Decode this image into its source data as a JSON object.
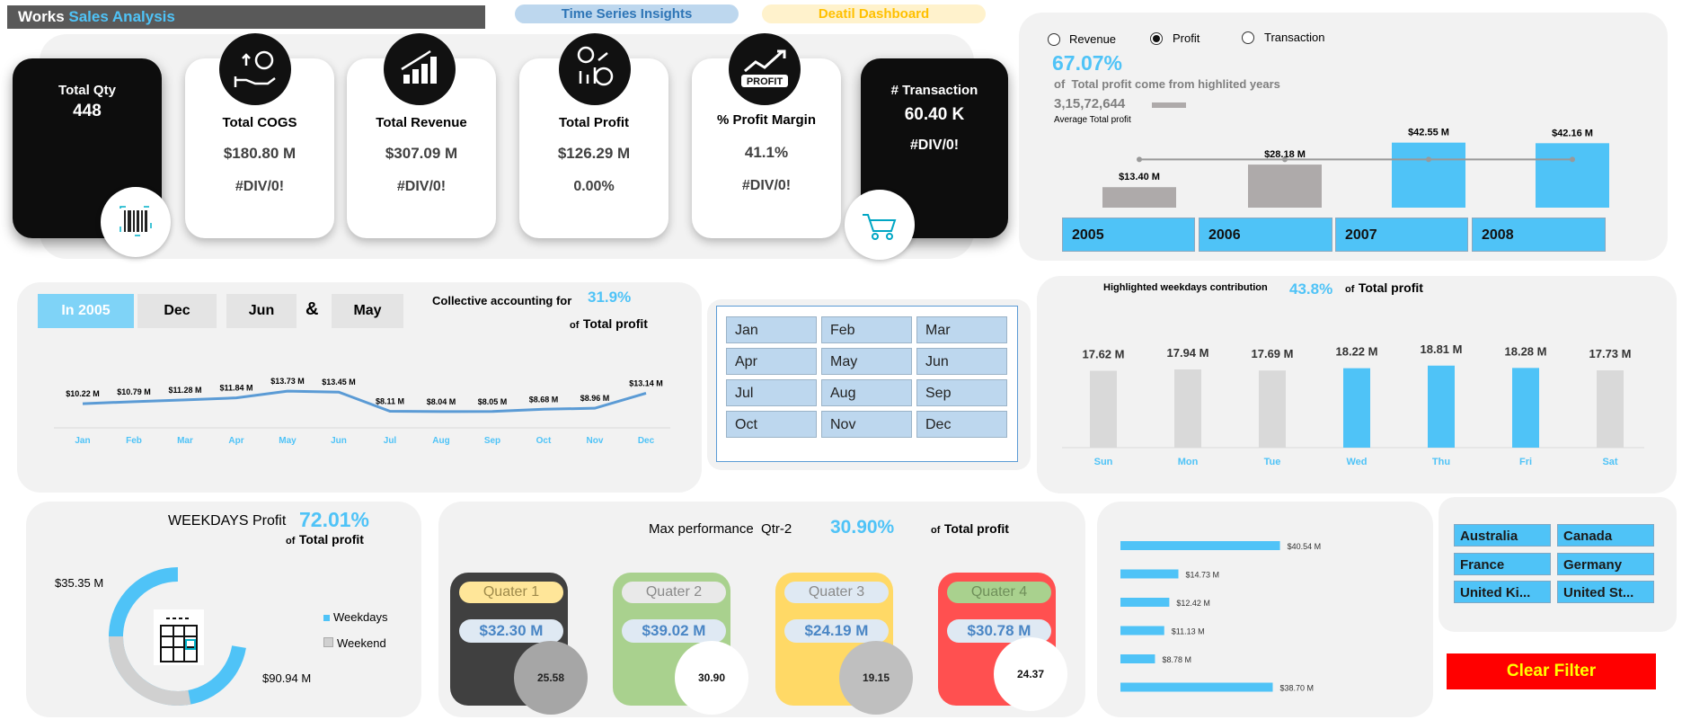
{
  "header": {
    "title_a": "Works",
    "title_b": "Sales Analysis",
    "nav_time_series": "Time Series Insights",
    "nav_detail": "Deatil Dashboard"
  },
  "kpis": {
    "qty": {
      "label": "Total Qty",
      "value": "448"
    },
    "cogs": {
      "label": "Total COGS",
      "value": "$180.80 M",
      "sub": "#DIV/0!"
    },
    "revenue": {
      "label": "Total Revenue",
      "value": "$307.09 M",
      "sub": "#DIV/0!"
    },
    "profit": {
      "label": "Total Profit",
      "value": "$126.29 M",
      "sub": "0.00%"
    },
    "margin": {
      "label": "% Profit Margin",
      "value": "41.1%",
      "sub": "#DIV/0!"
    },
    "transaction": {
      "label": "# Transaction",
      "value": "60.40 K",
      "sub": "#DIV/0!"
    },
    "profit_badge": "PROFIT"
  },
  "year_panel": {
    "radios": [
      "Revenue",
      "Profit",
      "Transaction"
    ],
    "selected_radio": "Profit",
    "pct": "67.07%",
    "pct_text_a": "of",
    "pct_text_b": "Total profit come from highlited years",
    "avg_value": "3,15,72,644",
    "avg_label": "Average Total profit",
    "years": [
      "2005",
      "2006",
      "2007",
      "2008"
    ],
    "values": [
      13.4,
      28.18,
      42.55,
      42.16
    ],
    "value_labels": [
      "$13.40 M",
      "$28.18 M",
      "$42.55 M",
      "$42.16 M"
    ],
    "highlighted": [
      false,
      false,
      true,
      true
    ]
  },
  "monthly_panel": {
    "tabs": [
      "In 2005",
      "Dec",
      "Jun",
      "&",
      "May"
    ],
    "accounting_text": "Collective accounting for",
    "pct": "31.9%",
    "of_text": "of",
    "total_text": "Total profit",
    "months": [
      "Jan",
      "Feb",
      "Mar",
      "Apr",
      "May",
      "Jun",
      "Jul",
      "Aug",
      "Sep",
      "Oct",
      "Nov",
      "Dec"
    ],
    "values": [
      10.22,
      10.79,
      11.28,
      11.84,
      13.73,
      13.45,
      8.11,
      8.04,
      8.05,
      8.68,
      8.96,
      13.14
    ],
    "value_labels": [
      "$10.22 M",
      "$10.79 M",
      "$11.28 M",
      "$11.84 M",
      "$13.73 M",
      "$13.45 M",
      "$8.11 M",
      "$8.04 M",
      "$8.05 M",
      "$8.68 M",
      "$8.96 M",
      "$13.14 M"
    ]
  },
  "month_slicer": [
    "Jan",
    "Feb",
    "Mar",
    "Apr",
    "May",
    "Jun",
    "Jul",
    "Aug",
    "Sep",
    "Oct",
    "Nov",
    "Dec"
  ],
  "weekday_panel": {
    "title": "Highlighted weekdays contribution",
    "pct": "43.8%",
    "of_text": "of",
    "total_text": "Total profit",
    "days": [
      "Sun",
      "Mon",
      "Tue",
      "Wed",
      "Thu",
      "Fri",
      "Sat"
    ],
    "values": [
      17.62,
      17.94,
      17.69,
      18.22,
      18.81,
      18.28,
      17.73
    ],
    "value_labels": [
      "17.62 M",
      "17.94 M",
      "17.69 M",
      "18.22 M",
      "18.81 M",
      "18.28 M",
      "17.73 M"
    ],
    "highlighted": [
      false,
      false,
      false,
      true,
      true,
      true,
      false
    ]
  },
  "weekdays_profit": {
    "title": "WEEKDAYS Profit",
    "pct": "72.01%",
    "of_text": "of",
    "total_text": "Total profit",
    "weekend_label": "$35.35 M",
    "weekdays_label": "$90.94 M",
    "weekend_value": 35.35,
    "weekdays_value": 90.94,
    "legend": [
      "Weekdays",
      "Weekend"
    ]
  },
  "quarter_panel": {
    "title": "Max performance  Qtr-2",
    "pct": "30.90%",
    "of_text": "of",
    "total_text": "Total profit",
    "quarters": [
      {
        "name": "Quater 1",
        "value": "$32.30 M",
        "pct": "25.58"
      },
      {
        "name": "Quater 2",
        "value": "$39.02 M",
        "pct": "30.90"
      },
      {
        "name": "Quater 3",
        "value": "$24.19 M",
        "pct": "19.15"
      },
      {
        "name": "Quater 4",
        "value": "$30.78 M",
        "pct": "24.37"
      }
    ]
  },
  "country_bars": {
    "values": [
      40.54,
      14.73,
      12.42,
      11.13,
      8.78,
      38.7
    ],
    "labels": [
      "$40.54 M",
      "$14.73 M",
      "$12.42 M",
      "$11.13 M",
      "$8.78 M",
      "$38.70 M"
    ]
  },
  "countries": [
    "Australia",
    "Canada",
    "France",
    "Germany",
    "United Ki...",
    "United St..."
  ],
  "clear_filter": "Clear Filter",
  "colors": {
    "accent": "#4fc3f7",
    "grey_bar": "#aeaaaa",
    "clear": "#ff0000"
  }
}
